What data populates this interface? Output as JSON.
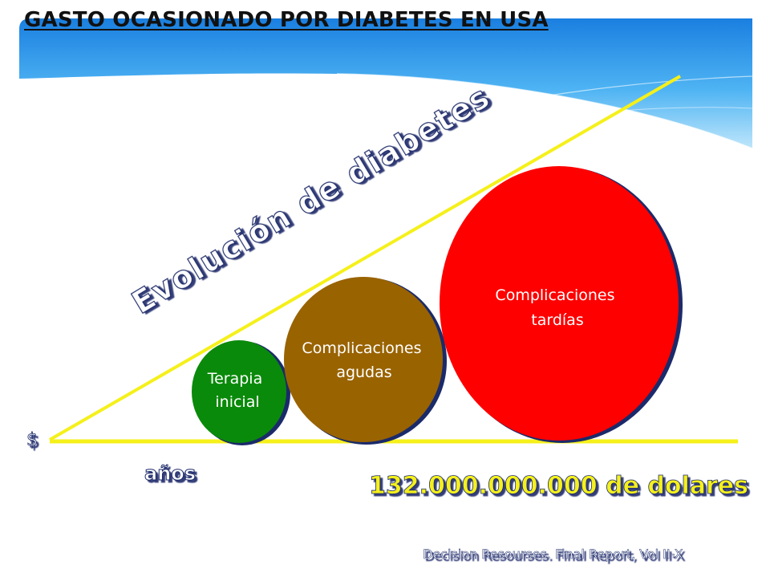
{
  "title": "GASTO OCASIONADO POR DIABETES EN USA",
  "diagram": {
    "line_label": "Evolución de diabetes",
    "y_axis_label": "$",
    "x_axis_label": "años",
    "total": "132.000.000.000 de dolares",
    "circles": [
      {
        "label_lines": [
          "Terapia",
          "inicial"
        ],
        "color": "#0a8a0a"
      },
      {
        "label_lines": [
          "Complicaciones",
          "agudas"
        ],
        "color": "#996300"
      },
      {
        "label_lines": [
          "Complicaciones",
          "tardías"
        ],
        "color": "#ff0000"
      }
    ],
    "line_color": "#f5f01a"
  },
  "source": "Decision Resourses. Final Report, Vol II-X"
}
